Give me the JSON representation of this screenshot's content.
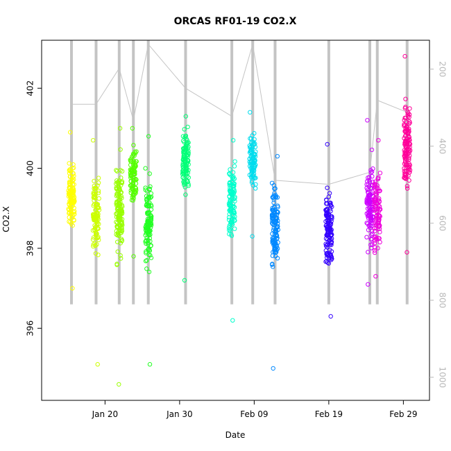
{
  "chart_data": {
    "type": "scatter",
    "title": "ORCAS RF01-19 CO2.X",
    "xlabel": "Date",
    "ylabel": "CO2.X",
    "x_ticks": [
      {
        "label": "Jan 20",
        "day": 20
      },
      {
        "label": "Jan 30",
        "day": 30
      },
      {
        "label": "Feb 09",
        "day": 40
      },
      {
        "label": "Feb 19",
        "day": 50
      },
      {
        "label": "Feb 29",
        "day": 60
      }
    ],
    "xlim_day": [
      11.5,
      63.5
    ],
    "ylim": [
      394.2,
      403.2
    ],
    "y_ticks": [
      396,
      398,
      400,
      402
    ],
    "right_axis": {
      "ticks": [
        200,
        400,
        600,
        800,
        1000
      ],
      "ylim": [
        1060,
        125
      ],
      "color": "#b8b8b8",
      "note": "secondary pressure-like axis (inverted), drawn in grey"
    },
    "grid": false,
    "flights": [
      {
        "day": 15.5,
        "color": "#ffff00",
        "ymin": 397.0,
        "ymax": 400.9,
        "center": 399.3,
        "spread": 0.8,
        "n": 110,
        "overlay": 401.6
      },
      {
        "day": 18.8,
        "color": "#ccff00",
        "ymin": 395.1,
        "ymax": 400.7,
        "center": 398.8,
        "spread": 1.0,
        "n": 110,
        "overlay": 401.6
      },
      {
        "day": 21.9,
        "color": "#99ff00",
        "ymin": 394.6,
        "ymax": 401.0,
        "center": 399.0,
        "spread": 1.3,
        "n": 130,
        "overlay": 402.5
      },
      {
        "day": 23.8,
        "color": "#55ff00",
        "ymin": 397.8,
        "ymax": 401.0,
        "center": 399.8,
        "spread": 0.8,
        "n": 90,
        "overlay": 401.2
      },
      {
        "day": 25.8,
        "color": "#22ff22",
        "ymin": 395.1,
        "ymax": 400.8,
        "center": 398.5,
        "spread": 1.3,
        "n": 120,
        "overlay": 403.1
      },
      {
        "day": 30.8,
        "color": "#00ff77",
        "ymin": 397.2,
        "ymax": 401.3,
        "center": 400.2,
        "spread": 0.9,
        "n": 110,
        "overlay": 402.0
      },
      {
        "day": 37.0,
        "color": "#00ffcc",
        "ymin": 396.2,
        "ymax": 400.7,
        "center": 399.2,
        "spread": 1.0,
        "n": 110,
        "overlay": 401.3
      },
      {
        "day": 39.8,
        "color": "#00ddee",
        "ymin": 398.3,
        "ymax": 401.4,
        "center": 400.2,
        "spread": 0.7,
        "n": 90,
        "overlay": 403.1
      },
      {
        "day": 42.8,
        "color": "#0088ff",
        "ymin": 395.0,
        "ymax": 400.3,
        "center": 398.5,
        "spread": 1.1,
        "n": 120,
        "overlay": 399.7
      },
      {
        "day": 50.0,
        "color": "#3300ff",
        "ymin": 396.3,
        "ymax": 400.6,
        "center": 398.5,
        "spread": 1.1,
        "n": 120,
        "overlay": 399.6
      },
      {
        "day": 55.5,
        "color": "#cc00ff",
        "ymin": 397.1,
        "ymax": 401.2,
        "center": 399.1,
        "spread": 1.1,
        "n": 110,
        "overlay": 399.9
      },
      {
        "day": 56.5,
        "color": "#ee00dd",
        "ymin": 397.3,
        "ymax": 400.7,
        "center": 398.9,
        "spread": 1.0,
        "n": 90,
        "overlay": 401.7
      },
      {
        "day": 60.5,
        "color": "#ff0099",
        "ymin": 397.9,
        "ymax": 402.8,
        "center": 400.6,
        "spread": 1.1,
        "n": 130,
        "overlay": 401.4
      }
    ]
  }
}
